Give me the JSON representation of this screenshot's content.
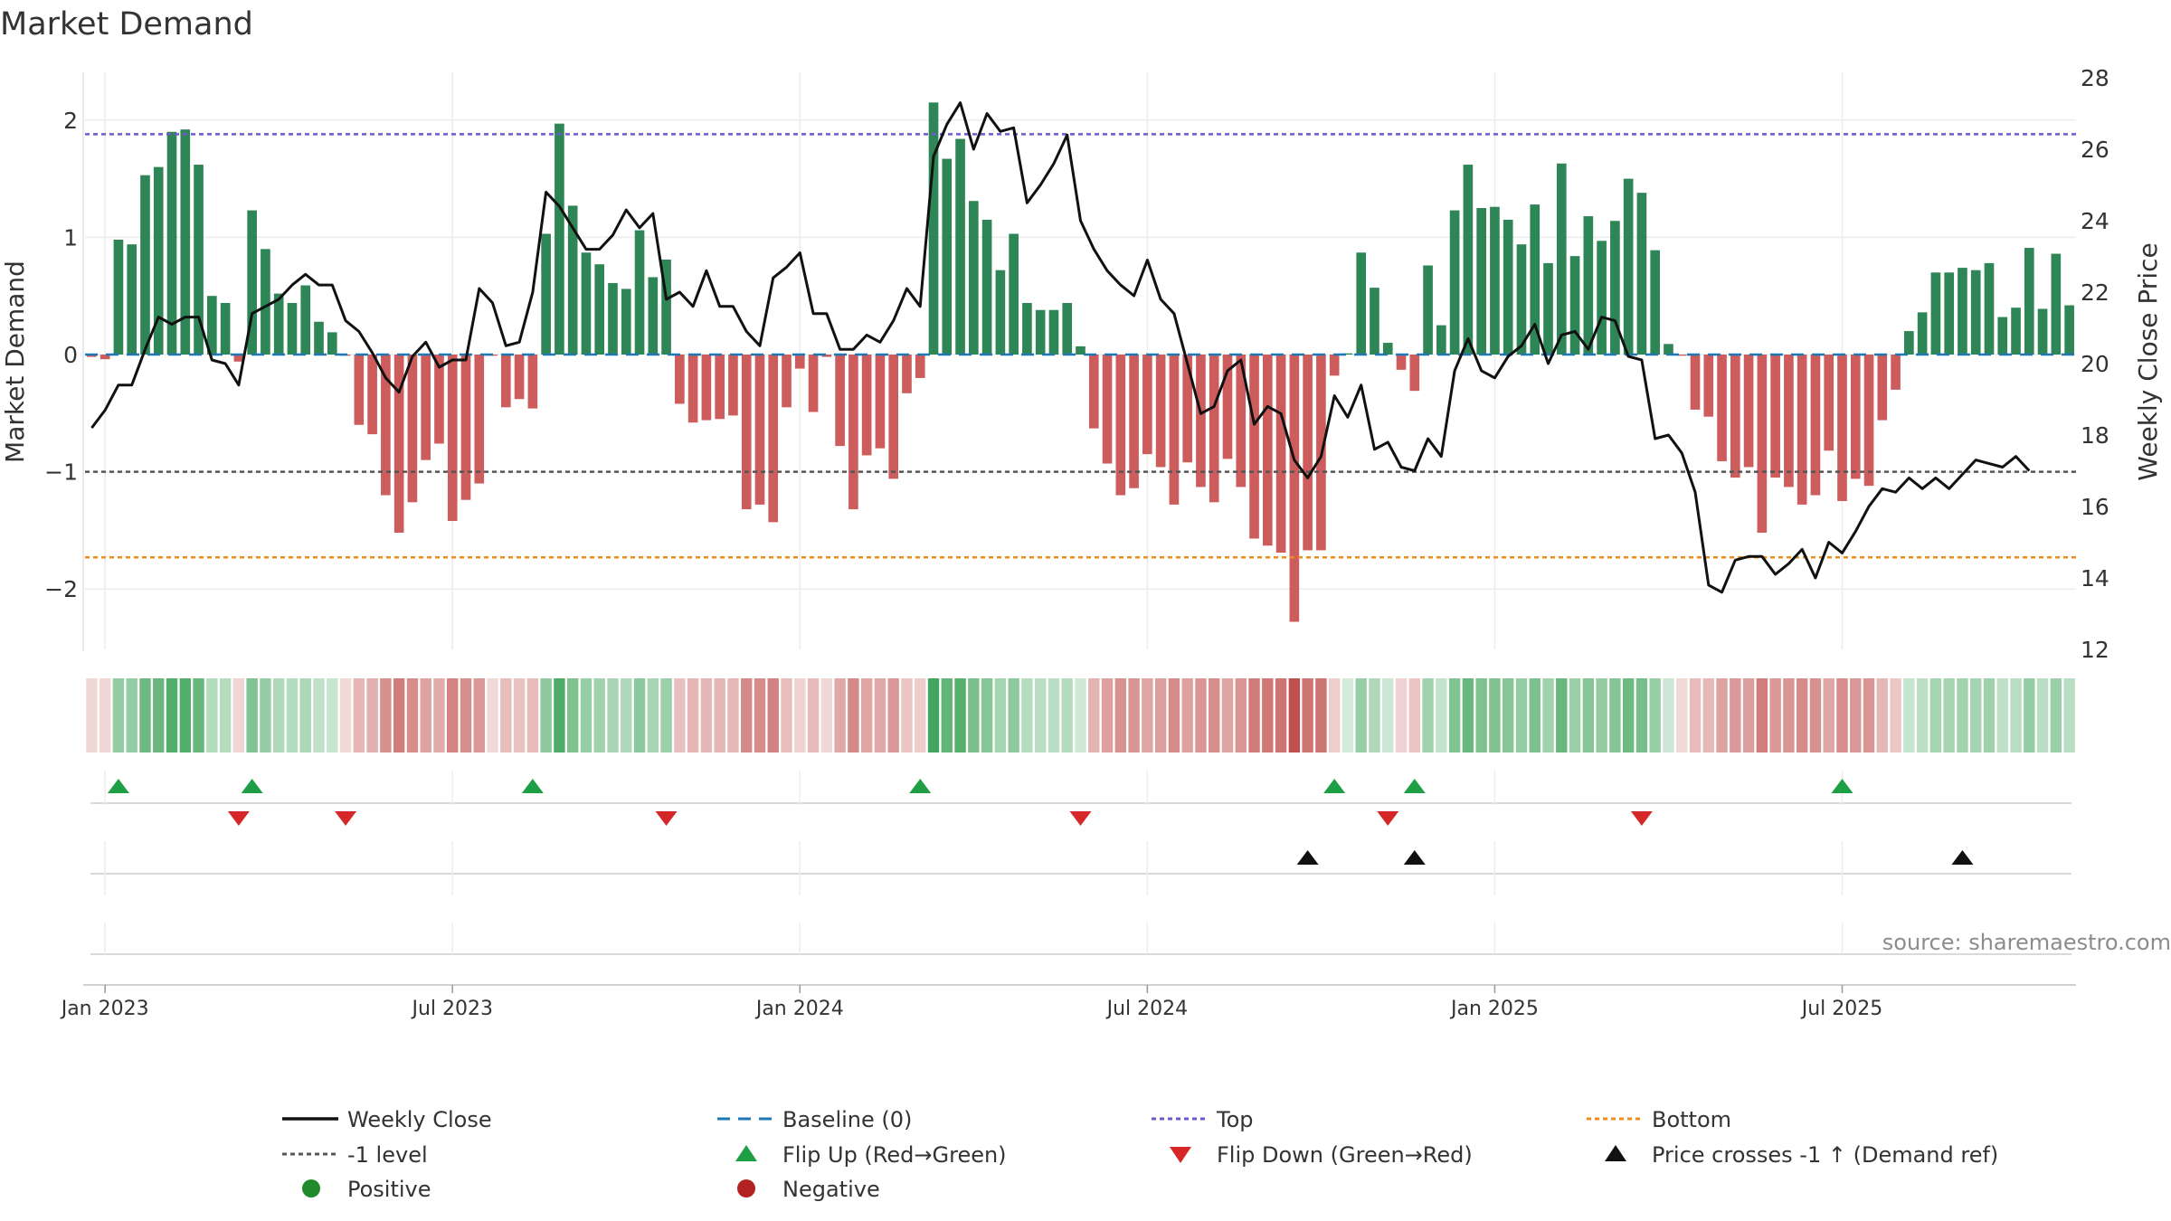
{
  "chart_data": {
    "type": "bar",
    "title": "Market Demand",
    "ylabel_left": "Market Demand",
    "ylabel_right": "Weekly Close Price",
    "ylim_left": [
      -2.5,
      2.5
    ],
    "ylim_right": [
      12,
      28
    ],
    "yticks_left": [
      2,
      1,
      0,
      -1,
      -2
    ],
    "ytick_labels_left": [
      "2",
      "1",
      "0",
      "−1",
      "−2"
    ],
    "yticks_right": [
      28,
      26,
      24,
      22,
      20,
      18,
      16,
      14,
      12
    ],
    "ytick_labels_right": [
      "28",
      "26",
      "24",
      "22",
      "20",
      "18",
      "16",
      "14",
      "12"
    ],
    "reference_lines": {
      "top": 1.88,
      "minus_one": -1.0,
      "bottom": -1.73,
      "baseline": 0
    },
    "source": "source: sharemaestro.com",
    "x_start": "2022-12-26",
    "x_tick_labels": [
      "Jan 2023",
      "Jul 2023",
      "Jan 2024",
      "Jul 2024",
      "Jan 2025",
      "Jul 2025"
    ],
    "x_tick_weeks": [
      1,
      27,
      53,
      79,
      105,
      131
    ],
    "demand": [
      -0.02,
      -0.04,
      0.98,
      0.94,
      1.53,
      1.6,
      1.9,
      1.92,
      1.62,
      0.5,
      0.44,
      -0.06,
      1.23,
      0.9,
      0.52,
      0.44,
      0.59,
      0.28,
      0.19,
      -0.01,
      -0.6,
      -0.68,
      -1.2,
      -1.52,
      -1.26,
      -0.9,
      -0.76,
      -1.42,
      -1.24,
      -1.1,
      -0.01,
      -0.45,
      -0.38,
      -0.46,
      1.03,
      1.97,
      1.27,
      0.87,
      0.77,
      0.61,
      0.56,
      1.06,
      0.66,
      0.81,
      -0.42,
      -0.58,
      -0.56,
      -0.55,
      -0.52,
      -1.32,
      -1.28,
      -1.43,
      -0.45,
      -0.12,
      -0.49,
      -0.02,
      -0.78,
      -1.32,
      -0.86,
      -0.8,
      -1.06,
      -0.33,
      -0.2,
      2.15,
      1.67,
      1.84,
      1.31,
      1.15,
      0.72,
      1.03,
      0.44,
      0.38,
      0.38,
      0.44,
      0.07,
      -0.63,
      -0.93,
      -1.2,
      -1.14,
      -0.85,
      -0.96,
      -1.28,
      -0.92,
      -1.13,
      -1.26,
      -0.89,
      -1.13,
      -1.57,
      -1.63,
      -1.69,
      -2.28,
      -1.67,
      -1.67,
      -0.18,
      0.01,
      0.87,
      0.57,
      0.1,
      -0.13,
      -0.31,
      0.76,
      0.25,
      1.23,
      1.62,
      1.25,
      1.26,
      1.15,
      0.94,
      1.28,
      0.78,
      1.63,
      0.84,
      1.18,
      0.97,
      1.14,
      1.5,
      1.38,
      0.89,
      0.09,
      -0.01,
      -0.47,
      -0.53,
      -0.91,
      -1.05,
      -0.96,
      -1.52,
      -1.05,
      -1.13,
      -1.28,
      -1.2,
      -0.82,
      -1.25,
      -1.06,
      -1.12,
      -0.56,
      -0.3,
      0.2,
      0.36,
      0.7,
      0.7,
      0.74,
      0.72,
      0.78,
      0.32,
      0.4,
      0.91,
      0.39,
      0.86,
      0.42
    ],
    "close": [
      18.2,
      18.7,
      19.4,
      19.4,
      20.4,
      21.3,
      21.1,
      21.3,
      21.3,
      20.1,
      20.0,
      19.4,
      21.4,
      21.6,
      21.8,
      22.2,
      22.5,
      22.2,
      22.2,
      21.2,
      20.9,
      20.3,
      19.6,
      19.2,
      20.2,
      20.6,
      19.9,
      20.1,
      20.1,
      22.1,
      21.7,
      20.5,
      20.6,
      22.0,
      24.8,
      24.4,
      23.8,
      23.2,
      23.2,
      23.6,
      24.3,
      23.8,
      24.2,
      21.8,
      22.0,
      21.6,
      22.6,
      21.6,
      21.6,
      20.9,
      20.5,
      22.4,
      22.7,
      23.1,
      21.4,
      21.4,
      20.4,
      20.4,
      20.8,
      20.6,
      21.2,
      22.1,
      21.6,
      25.8,
      26.7,
      27.3,
      26.0,
      27.0,
      26.5,
      26.6,
      24.5,
      25.0,
      25.6,
      26.4,
      24.0,
      23.2,
      22.6,
      22.2,
      21.9,
      22.9,
      21.8,
      21.4,
      20.0,
      18.6,
      18.8,
      19.8,
      20.1,
      18.3,
      18.8,
      18.6,
      17.3,
      16.8,
      17.4,
      19.1,
      18.5,
      19.4,
      17.6,
      17.8,
      17.1,
      17.0,
      17.9,
      17.4,
      19.8,
      20.7,
      19.8,
      19.6,
      20.2,
      20.5,
      21.1,
      20.0,
      20.8,
      20.9,
      20.4,
      21.3,
      21.2,
      20.2,
      20.1,
      17.9,
      18.0,
      17.5,
      16.4,
      13.8,
      13.6,
      14.5,
      14.6,
      14.6,
      14.1,
      14.4,
      14.8,
      14.0,
      15.0,
      14.7,
      15.3,
      16.0,
      16.5,
      16.4,
      16.8,
      16.5,
      16.8,
      16.5,
      16.9,
      17.3,
      17.2,
      17.1,
      17.4,
      17.0
    ],
    "flip_up_weeks": [
      2,
      12,
      33,
      62,
      93,
      99,
      131
    ],
    "flip_down_weeks": [
      11,
      19,
      43,
      74,
      97,
      116
    ],
    "price_cross_weeks": [
      91,
      99,
      140
    ],
    "colors": {
      "positive_bar": "#2e8555",
      "negative_bar": "#cd5c5c",
      "close_line": "#111111",
      "baseline": "#1f77b4",
      "top_line": "#6a5acd",
      "minus_one_line": "#555555",
      "bottom_line": "#f08c1a",
      "flip_up": "#1e9e45",
      "flip_down": "#d62728",
      "price_cross": "#111111",
      "positive_dot": "#1e8a2c",
      "negative_dot": "#b22222"
    },
    "legend": [
      {
        "label": "Weekly Close",
        "symbol": "line",
        "color": "#111111"
      },
      {
        "label": "Baseline (0)",
        "symbol": "dash",
        "color": "#1f77b4"
      },
      {
        "label": "Top",
        "symbol": "dot",
        "color": "#6a5acd"
      },
      {
        "label": "Bottom",
        "symbol": "dot",
        "color": "#f08c1a"
      },
      {
        "label": "-1 level",
        "symbol": "dot",
        "color": "#555555"
      },
      {
        "label": "Flip Up (Red→Green)",
        "symbol": "tri-up",
        "color": "#1e9e45"
      },
      {
        "label": "Flip Down (Green→Red)",
        "symbol": "tri-down",
        "color": "#d62728"
      },
      {
        "label": "Price crosses -1 ↑ (Demand ref)",
        "symbol": "tri-up",
        "color": "#111111"
      },
      {
        "label": "Positive",
        "symbol": "circle",
        "color": "#1e8a2c"
      },
      {
        "label": "Negative",
        "symbol": "circle",
        "color": "#b22222"
      }
    ]
  }
}
